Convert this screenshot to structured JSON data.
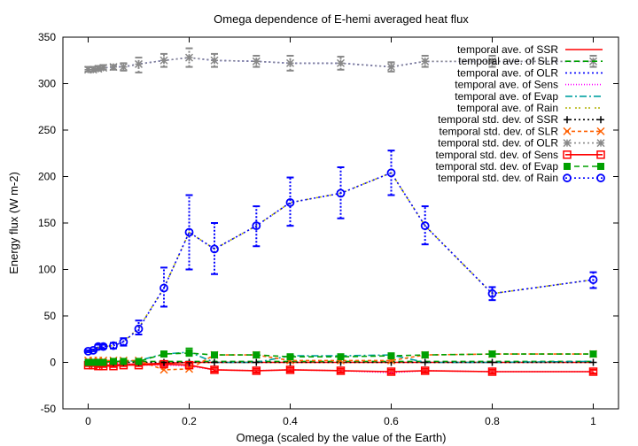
{
  "chart_data": {
    "type": "line",
    "title": "Omega dependence of E-hemi averaged heat flux",
    "xlabel": "Omega (scaled by the value of the Earth)",
    "ylabel": "Energy flux (W m-2)",
    "xlim": [
      -0.05,
      1.05
    ],
    "ylim": [
      -50,
      350
    ],
    "xticks": [
      0,
      0.2,
      0.4,
      0.6,
      0.8,
      1
    ],
    "xtick_labels": [
      "0",
      "0.2",
      "0.4",
      "0.6",
      "0.8",
      "1"
    ],
    "yticks": [
      -50,
      0,
      50,
      100,
      150,
      200,
      250,
      300,
      350
    ],
    "ytick_labels": [
      "-50",
      "0",
      "50",
      "100",
      "150",
      "200",
      "250",
      "300",
      "350"
    ],
    "grid": false,
    "legend_position": "top-right",
    "x": [
      0,
      0.01,
      0.02,
      0.03,
      0.05,
      0.07,
      0.1,
      0.15,
      0.2,
      0.25,
      0.333,
      0.4,
      0.5,
      0.6,
      0.667,
      0.8,
      1.0
    ],
    "series": [
      {
        "name": "temporal ave. of SSR",
        "color": "#ff0000",
        "dash": "",
        "marker": "none",
        "values": [
          -3,
          -3,
          -3,
          -3,
          -3,
          -2,
          -2,
          -1,
          0,
          0,
          0,
          0,
          0,
          0,
          0,
          0,
          0
        ]
      },
      {
        "name": "temporal ave. of SLR",
        "color": "#00a000",
        "dash": "6,4",
        "marker": "none",
        "values": [
          1,
          1,
          1,
          1,
          1,
          1,
          1,
          1,
          1,
          1,
          1,
          1,
          1,
          1,
          1,
          1,
          1
        ]
      },
      {
        "name": "temporal ave. of OLR",
        "color": "#0000ff",
        "dash": "2,3",
        "marker": "none",
        "values": [
          315,
          315,
          316,
          317,
          318,
          318,
          321,
          325,
          328,
          325,
          324,
          322,
          322,
          318,
          324,
          324,
          324
        ]
      },
      {
        "name": "temporal ave. of Sens",
        "color": "#ff00ff",
        "dash": "1,2",
        "marker": "none",
        "values": [
          -1,
          -1,
          -1,
          -2,
          -2,
          -2,
          -3,
          -3,
          -4,
          -8,
          -9,
          -8,
          -9,
          -11,
          -9,
          -10,
          -10
        ]
      },
      {
        "name": "temporal ave. of Evap",
        "color": "#00a0a0",
        "dash": "8,3,2,3",
        "marker": "none",
        "values": [
          0,
          0,
          0,
          0,
          1,
          1,
          2,
          9,
          11,
          0,
          0,
          7,
          7,
          8,
          0,
          0,
          1
        ]
      },
      {
        "name": "temporal ave. of Rain",
        "color": "#b0b000",
        "dash": "2,2,2,5",
        "marker": "none",
        "values": [
          12,
          13,
          16,
          17,
          18,
          22,
          37,
          80,
          140,
          122,
          147,
          172,
          182,
          204,
          147,
          74,
          89
        ]
      },
      {
        "name": "temporal std. dev. of SSR",
        "color": "#000000",
        "dash": "2,3",
        "marker": "plus",
        "values": [
          0,
          0,
          0,
          0,
          0,
          0,
          0,
          0,
          0,
          0,
          0,
          0,
          0,
          0,
          0,
          0,
          0
        ]
      },
      {
        "name": "temporal std. dev. of SLR",
        "color": "#ff6000",
        "dash": "4,3",
        "marker": "cross",
        "values": [
          2,
          2,
          2,
          2,
          2,
          2,
          2,
          -8,
          -7,
          8,
          8,
          2,
          2,
          2,
          8,
          9,
          9
        ]
      },
      {
        "name": "temporal std. dev. of OLR",
        "color": "#888888",
        "dash": "2,3",
        "marker": "star",
        "values": [
          315,
          315,
          316,
          317,
          318,
          318,
          321,
          325,
          328,
          325,
          324,
          322,
          322,
          318,
          324,
          324,
          324
        ]
      },
      {
        "name": "temporal std. dev. of Sens",
        "color": "#ff0000",
        "dash": "",
        "marker": "square",
        "values": [
          -3,
          -3,
          -4,
          -4,
          -4,
          -3,
          -3,
          -2,
          -3,
          -8,
          -9,
          -8,
          -9,
          -10,
          -9,
          -10,
          -10
        ]
      },
      {
        "name": "temporal std. dev. of Evap",
        "color": "#00a000",
        "dash": "6,4",
        "marker": "filled-square",
        "values": [
          0,
          0,
          0,
          0,
          1,
          1,
          1,
          9,
          10,
          8,
          8,
          6,
          6,
          7,
          8,
          9,
          9
        ]
      },
      {
        "name": "temporal std. dev. of Rain",
        "color": "#0000ff",
        "dash": "2,3",
        "marker": "circle",
        "values": [
          12,
          13,
          17,
          17,
          18,
          22,
          36,
          80,
          140,
          122,
          147,
          172,
          182,
          204,
          147,
          74,
          89
        ]
      }
    ],
    "error_bars": [
      {
        "series_index": 8,
        "color": "#888888",
        "low": [
          313,
          313,
          314,
          315,
          315,
          314,
          312,
          318,
          318,
          318,
          318,
          314,
          315,
          313,
          318,
          318,
          318
        ],
        "high": [
          318,
          318,
          319,
          320,
          320,
          322,
          328,
          332,
          338,
          332,
          330,
          330,
          329,
          323,
          330,
          330,
          330
        ]
      },
      {
        "series_index": 11,
        "color": "#0000ff",
        "low": [
          11,
          12,
          15,
          15,
          15,
          18,
          30,
          60,
          100,
          95,
          125,
          147,
          155,
          180,
          127,
          67,
          80
        ],
        "high": [
          13,
          14,
          19,
          19,
          21,
          26,
          45,
          102,
          180,
          150,
          168,
          199,
          210,
          228,
          168,
          81,
          97
        ]
      },
      {
        "series_index": 9,
        "color": "#ff0000",
        "low": [
          -4,
          -4,
          -5,
          -5,
          -5,
          -4,
          -4,
          -4,
          -5,
          -10,
          -11,
          -10,
          -11,
          -12,
          -11,
          -12,
          -12
        ],
        "high": [
          -2,
          -2,
          -3,
          -3,
          -3,
          -2,
          -2,
          0,
          -1,
          -6,
          -7,
          -6,
          -7,
          -8,
          -7,
          -8,
          -8
        ]
      },
      {
        "series_index": 10,
        "color": "#00a000",
        "low": [
          -1,
          -1,
          -1,
          -1,
          0,
          0,
          0,
          7,
          7,
          6,
          6,
          4,
          4,
          5,
          6,
          7,
          7
        ],
        "high": [
          1,
          1,
          1,
          1,
          2,
          2,
          2,
          11,
          15,
          10,
          10,
          8,
          8,
          9,
          10,
          11,
          11
        ]
      }
    ]
  }
}
